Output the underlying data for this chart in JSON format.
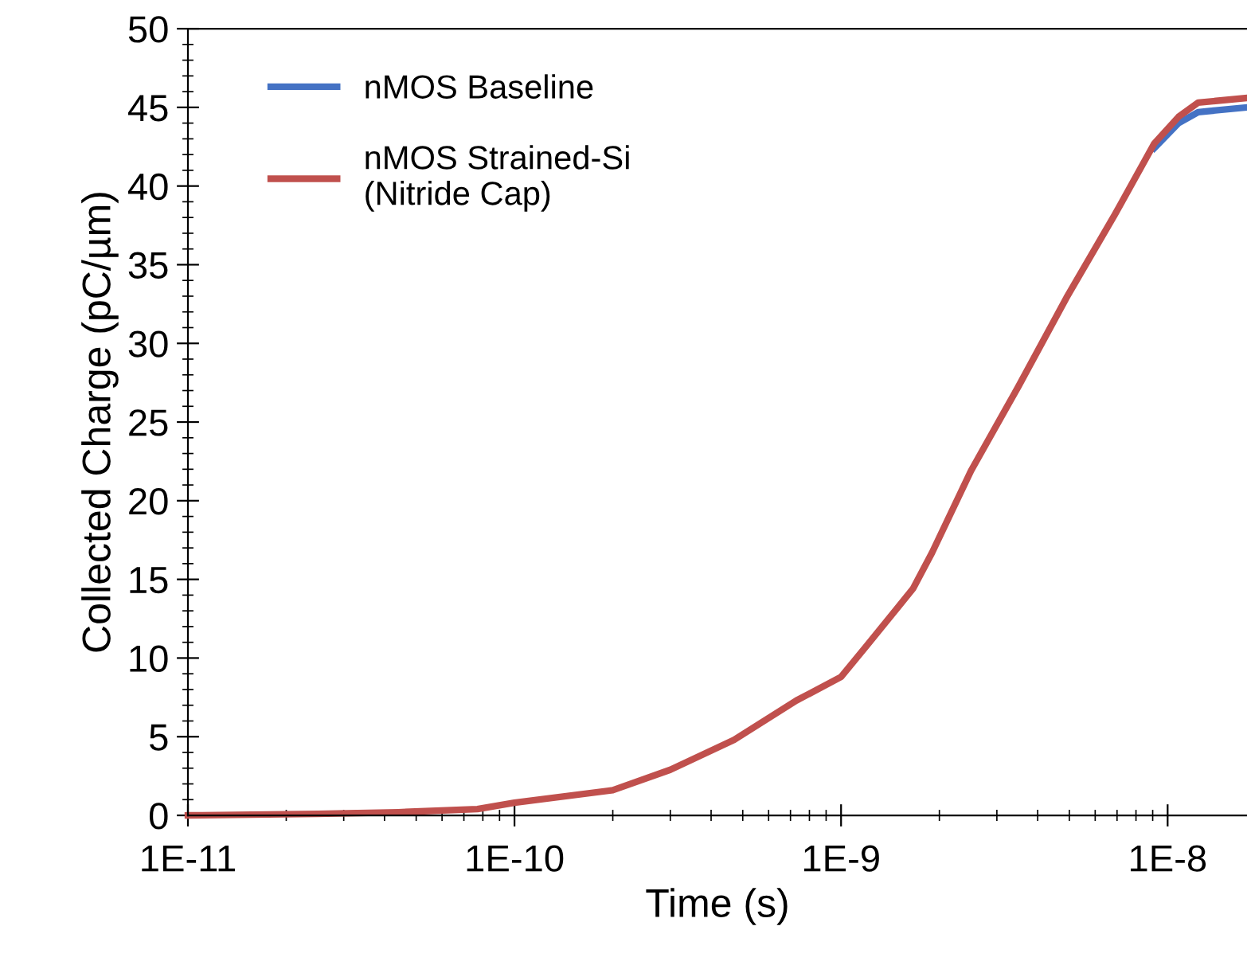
{
  "chart_data": {
    "type": "line",
    "xlabel": "Time (s)",
    "ylabel": "Collected Charge (pC/µm)",
    "log": "x",
    "grid": false,
    "legend": "top left",
    "marker": "none",
    "line_style": "solid",
    "xlim": [
      1e-11,
      1.75e-08
    ],
    "xticks": [
      {
        "value": 1e-11,
        "label": "1E-11"
      },
      {
        "value": 1e-10,
        "label": "1E-10"
      },
      {
        "value": 1e-09,
        "label": "1E-9"
      },
      {
        "value": 1e-08,
        "label": "1E-8"
      }
    ],
    "ylim": [
      0,
      50
    ],
    "yticks": [
      0,
      5,
      10,
      15,
      20,
      25,
      30,
      35,
      40,
      45,
      50
    ],
    "x": [
      1e-11,
      2.5e-11,
      4.4e-11,
      7.7e-11,
      1e-10,
      2e-10,
      3e-10,
      4.7e-10,
      7.3e-10,
      1e-09,
      1.2e-09,
      1.66e-09,
      1.9e-09,
      2.5e-09,
      3.5e-09,
      4.9e-09,
      6.9e-09,
      9.1e-09,
      1.08e-08,
      1.24e-08,
      1.75e-08
    ],
    "series": [
      {
        "name": "nMOS Baseline",
        "color": "#4472c4",
        "values": [
          null,
          null,
          null,
          null,
          null,
          null,
          null,
          null,
          null,
          null,
          null,
          null,
          null,
          null,
          null,
          null,
          null,
          42.4,
          44.0,
          44.7,
          45.0
        ]
      },
      {
        "name": "nMOS Strained-Si\n(Nitride Cap)",
        "color": "#c0504d",
        "values": [
          0,
          0.1,
          0.2,
          0.4,
          0.8,
          1.6,
          2.9,
          4.8,
          7.3,
          8.8,
          10.8,
          14.4,
          16.7,
          21.9,
          27.3,
          32.9,
          38.2,
          42.7,
          44.4,
          45.3,
          45.6
        ]
      }
    ]
  }
}
